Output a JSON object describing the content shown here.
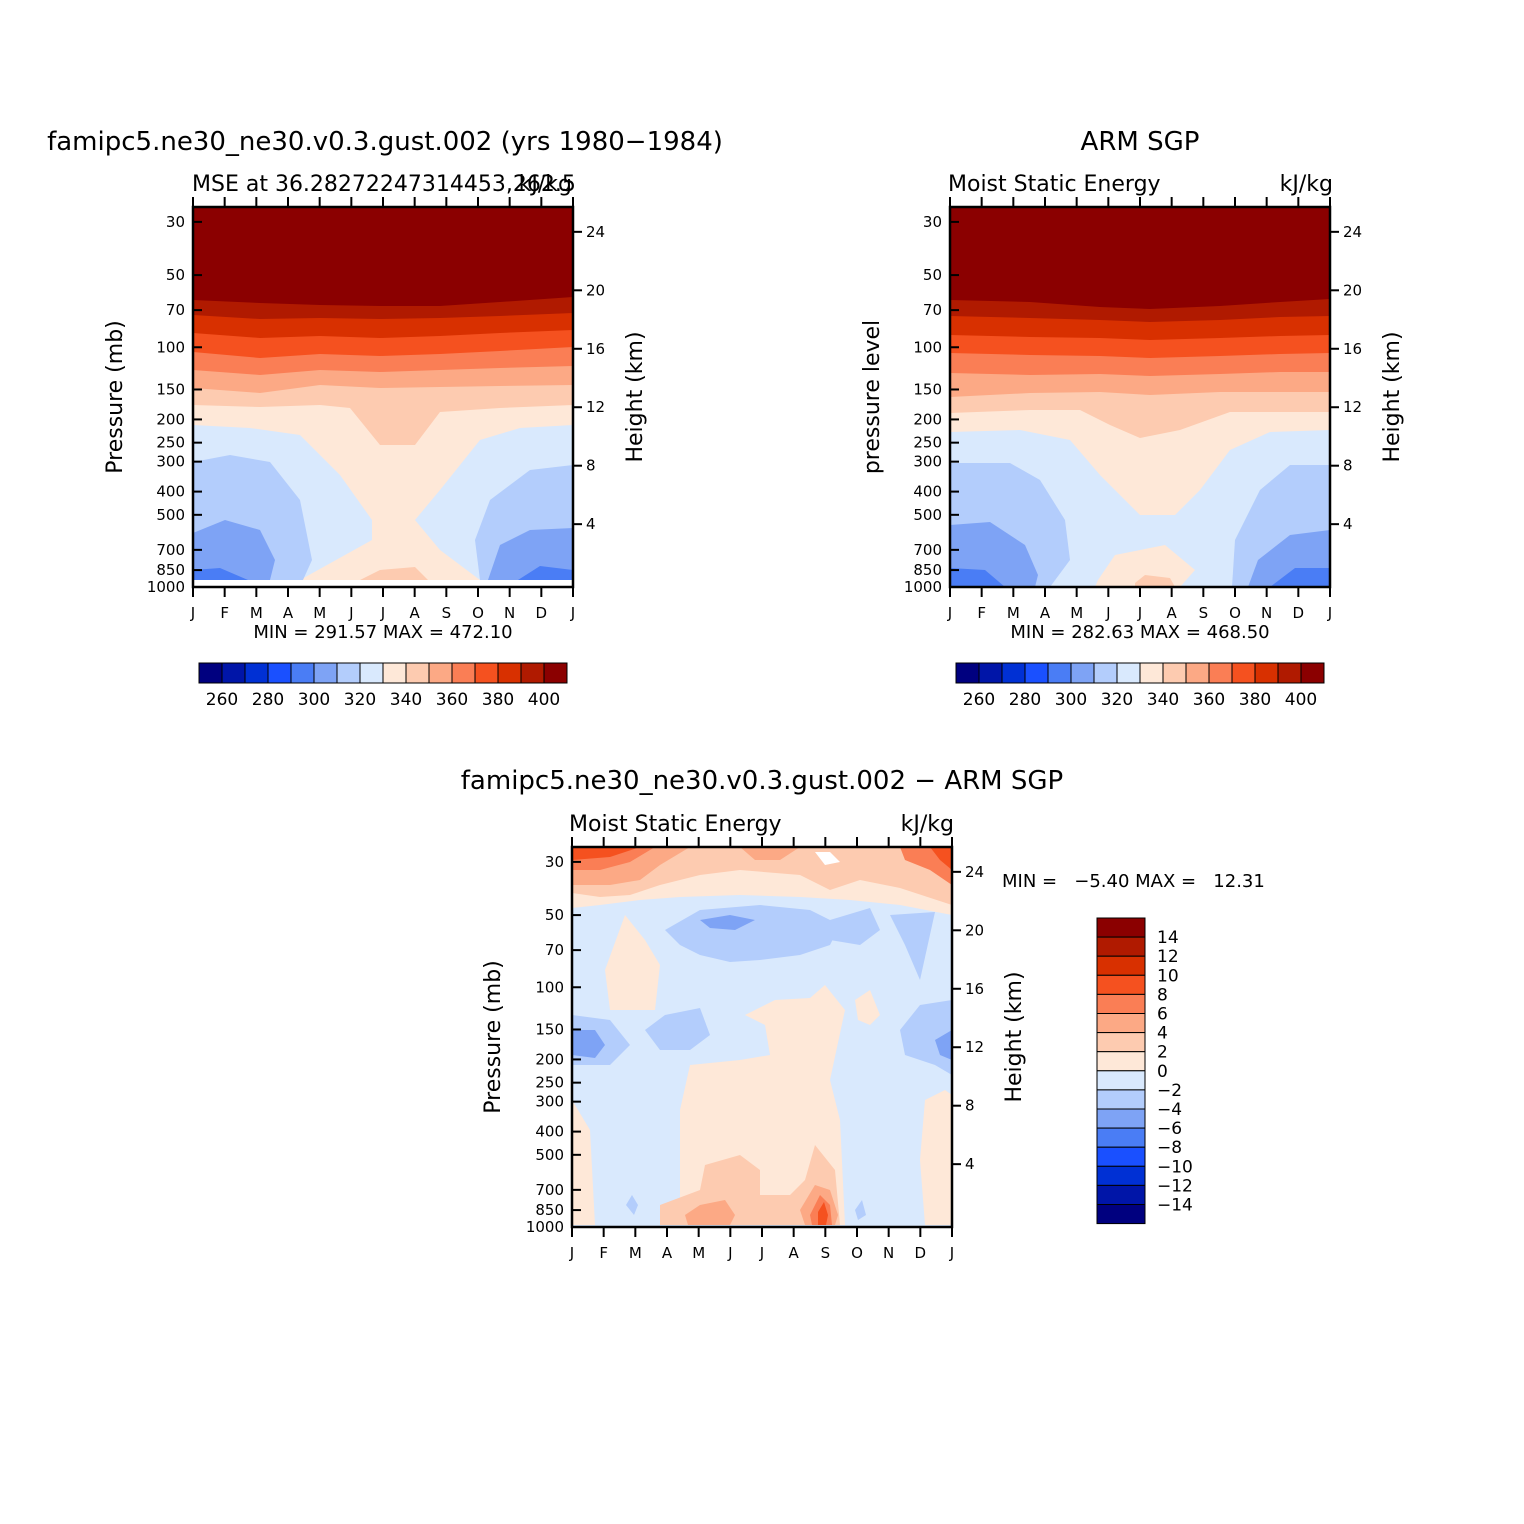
{
  "chart_data": [
    {
      "type": "heatmap",
      "title": "famipc5.ne30_ne30.v0.3.gust.002 (yrs 1980−1984)",
      "left_subtitle": "MSE at 36.28272247314453,262.5",
      "right_subtitle": "kJ/kg",
      "ylabel": "Pressure (mb)",
      "ylabel_right": "Height (km)",
      "x_ticks": [
        "J",
        "F",
        "M",
        "A",
        "M",
        "J",
        "J",
        "A",
        "S",
        "O",
        "N",
        "D",
        "J"
      ],
      "y_ticks": [
        "30",
        "50",
        "70",
        "100",
        "150",
        "200",
        "250",
        "300",
        "400",
        "500",
        "700",
        "850",
        "1000"
      ],
      "y_ticks_right": [
        "24",
        "20",
        "16",
        "12",
        "8",
        "4"
      ],
      "min_max": "MIN = 291.57 MAX = 472.10",
      "colorbar_labels": [
        "260",
        "280",
        "300",
        "320",
        "340",
        "360",
        "380",
        "400"
      ],
      "levels": [
        250,
        260,
        270,
        280,
        290,
        300,
        310,
        320,
        330,
        340,
        350,
        360,
        370,
        380,
        390,
        400
      ]
    },
    {
      "type": "heatmap",
      "title": "ARM SGP",
      "left_subtitle": "Moist Static Energy",
      "right_subtitle": "kJ/kg",
      "ylabel": "pressure level",
      "ylabel_right": "Height (km)",
      "x_ticks": [
        "J",
        "F",
        "M",
        "A",
        "M",
        "J",
        "J",
        "A",
        "S",
        "O",
        "N",
        "D",
        "J"
      ],
      "y_ticks": [
        "30",
        "50",
        "70",
        "100",
        "150",
        "200",
        "250",
        "300",
        "400",
        "500",
        "700",
        "850",
        "1000"
      ],
      "y_ticks_right": [
        "24",
        "20",
        "16",
        "12",
        "8",
        "4"
      ],
      "min_max": "MIN = 282.63 MAX = 468.50",
      "colorbar_labels": [
        "260",
        "280",
        "300",
        "320",
        "340",
        "360",
        "380",
        "400"
      ],
      "levels": [
        250,
        260,
        270,
        280,
        290,
        300,
        310,
        320,
        330,
        340,
        350,
        360,
        370,
        380,
        390,
        400
      ]
    },
    {
      "type": "heatmap",
      "title": "famipc5.ne30_ne30.v0.3.gust.002 − ARM SGP",
      "left_subtitle": "Moist Static Energy",
      "right_subtitle": "kJ/kg",
      "ylabel": "Pressure (mb)",
      "ylabel_right": "Height (km)",
      "x_ticks": [
        "J",
        "F",
        "M",
        "A",
        "M",
        "J",
        "J",
        "A",
        "S",
        "O",
        "N",
        "D",
        "J"
      ],
      "y_ticks": [
        "30",
        "50",
        "70",
        "100",
        "150",
        "200",
        "250",
        "300",
        "400",
        "500",
        "700",
        "850",
        "1000"
      ],
      "y_ticks_right": [
        "24",
        "20",
        "16",
        "12",
        "8",
        "4"
      ],
      "min_max": "MIN =   −5.40 MAX =   12.31",
      "colorbar_labels": [
        "14",
        "12",
        "10",
        "8",
        "6",
        "4",
        "2",
        "0",
        "−2",
        "−4",
        "−6",
        "−8",
        "−10",
        "−12",
        "−14"
      ],
      "levels": [
        -14,
        -12,
        -10,
        -8,
        -6,
        -4,
        -2,
        0,
        2,
        4,
        6,
        8,
        10,
        12,
        14
      ]
    }
  ],
  "colors": {
    "palette": [
      "#00007f",
      "#0015a8",
      "#0030d4",
      "#1a50ff",
      "#4a7df5",
      "#7ea3f5",
      "#b3cdfc",
      "#d9e9fd",
      "#fee8d8",
      "#fdcbb0",
      "#fca985",
      "#fa7e55",
      "#f5511f",
      "#d83000",
      "#b01a00",
      "#8b0000"
    ]
  }
}
